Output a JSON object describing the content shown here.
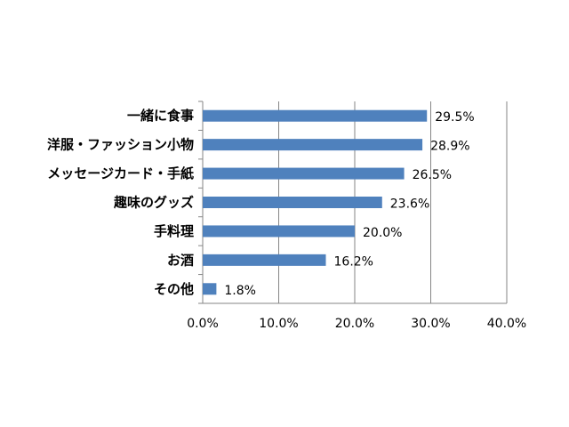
{
  "chart_data": {
    "type": "bar",
    "orientation": "horizontal",
    "categories": [
      "一緒に食事",
      "洋服・ファッション小物",
      "メッセージカード・手紙",
      "趣味のグッズ",
      "手料理",
      "お酒",
      "その他"
    ],
    "values": [
      29.5,
      28.9,
      26.5,
      23.6,
      20.0,
      16.2,
      1.8
    ],
    "value_labels": [
      "29.5%",
      "28.9%",
      "26.5%",
      "23.6%",
      "20.0%",
      "16.2%",
      "1.8%"
    ],
    "x_ticks": [
      0,
      10,
      20,
      30,
      40
    ],
    "x_tick_labels": [
      "0.0%",
      "10.0%",
      "20.0%",
      "30.0%",
      "40.0%"
    ],
    "xlim": [
      0,
      40
    ],
    "title": "",
    "xlabel": "",
    "ylabel": "",
    "grid": "vertical",
    "legend": "none",
    "bar_color": "#4F81BD",
    "grid_color": "#868686"
  }
}
